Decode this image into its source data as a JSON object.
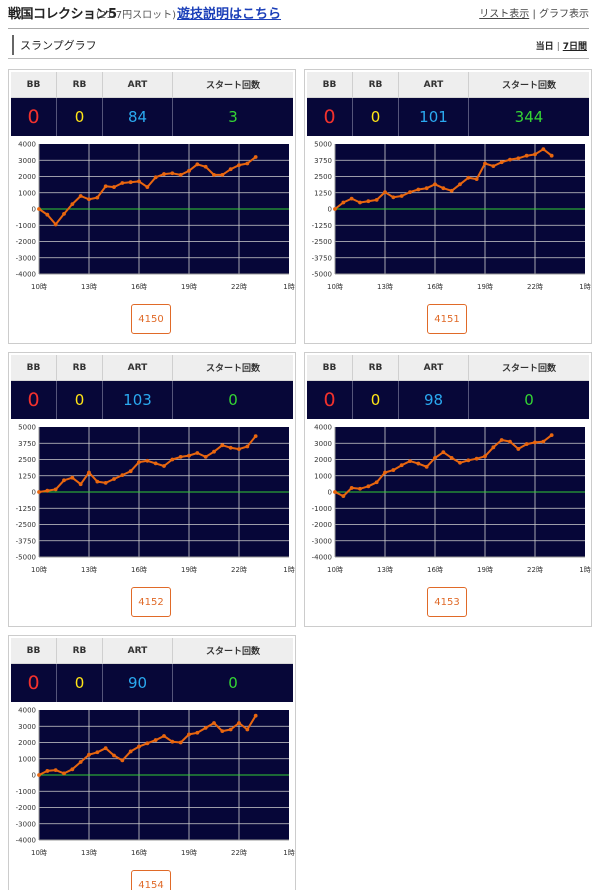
{
  "header": {
    "title": "戦国コレクション5",
    "subtitle": "(21.7円スロット)",
    "help_link": "遊技説明はこちら",
    "view_list": "リスト表示",
    "view_sep": "|",
    "view_graph": "グラフ表示"
  },
  "section": {
    "title": "スランプグラフ",
    "range_today": "当日",
    "range_sep": "|",
    "range_week": "7日間"
  },
  "columns": {
    "bb": "BB",
    "rb": "RB",
    "art": "ART",
    "start": "スタート回数"
  },
  "colors": {
    "line": "#e8660f",
    "zero_line": "#33cc33",
    "plot_bg": "#060638",
    "grid": "#cfcfcf"
  },
  "chart_data": [
    {
      "type": "line",
      "machine": "4150",
      "stats": {
        "bb": "0",
        "rb": "0",
        "art": "84",
        "start": "3"
      },
      "x_ticks": [
        "10時",
        "13時",
        "16時",
        "19時",
        "22時",
        "1時"
      ],
      "y_ticks": [
        "4000",
        "3000",
        "2000",
        "1000",
        "0",
        "-1000",
        "-2000",
        "-3000",
        "-4000"
      ],
      "xlim": [
        10,
        25
      ],
      "ylim": [
        -4000,
        4000
      ],
      "x": [
        10,
        10.5,
        11,
        11.5,
        12,
        12.5,
        13,
        13.5,
        14,
        14.5,
        15,
        15.5,
        16,
        16.5,
        17,
        17.5,
        18,
        18.5,
        19,
        19.5,
        20,
        20.5,
        21,
        21.5,
        22,
        22.5,
        23
      ],
      "y": [
        0,
        -350,
        -950,
        -300,
        300,
        800,
        600,
        700,
        1400,
        1350,
        1600,
        1650,
        1700,
        1350,
        1950,
        2150,
        2200,
        2100,
        2350,
        2750,
        2600,
        2100,
        2100,
        2450,
        2700,
        2800,
        3200
      ]
    },
    {
      "type": "line",
      "machine": "4151",
      "stats": {
        "bb": "0",
        "rb": "0",
        "art": "101",
        "start": "344"
      },
      "x_ticks": [
        "10時",
        "13時",
        "16時",
        "19時",
        "22時",
        "1時"
      ],
      "y_ticks": [
        "5000",
        "3750",
        "2500",
        "1250",
        "0",
        "-1250",
        "-2500",
        "-3750",
        "-5000"
      ],
      "xlim": [
        10,
        25
      ],
      "ylim": [
        -5000,
        5000
      ],
      "x": [
        10,
        10.5,
        11,
        11.5,
        12,
        12.5,
        13,
        13.5,
        14,
        14.5,
        15,
        15.5,
        16,
        16.5,
        17,
        17.5,
        18,
        18.5,
        19,
        19.5,
        20,
        20.5,
        21,
        21.5,
        22,
        22.5,
        23
      ],
      "y": [
        0,
        500,
        800,
        500,
        600,
        700,
        1300,
        900,
        1000,
        1300,
        1500,
        1600,
        1900,
        1600,
        1400,
        1900,
        2400,
        2300,
        3500,
        3300,
        3600,
        3800,
        3900,
        4100,
        4200,
        4600,
        4100
      ]
    },
    {
      "type": "line",
      "machine": "4152",
      "stats": {
        "bb": "0",
        "rb": "0",
        "art": "103",
        "start": "0"
      },
      "x_ticks": [
        "10時",
        "13時",
        "16時",
        "19時",
        "22時",
        "1時"
      ],
      "y_ticks": [
        "5000",
        "3750",
        "2500",
        "1250",
        "0",
        "-1250",
        "-2500",
        "-3750",
        "-5000"
      ],
      "xlim": [
        10,
        25
      ],
      "ylim": [
        -5000,
        5000
      ],
      "x": [
        10,
        10.5,
        11,
        11.5,
        12,
        12.5,
        13,
        13.5,
        14,
        14.5,
        15,
        15.5,
        16,
        16.5,
        17,
        17.5,
        18,
        18.5,
        19,
        19.5,
        20,
        20.5,
        21,
        21.5,
        22,
        22.5,
        23
      ],
      "y": [
        0,
        100,
        200,
        900,
        1100,
        600,
        1500,
        800,
        700,
        1000,
        1300,
        1600,
        2300,
        2400,
        2200,
        2000,
        2500,
        2700,
        2800,
        3000,
        2700,
        3100,
        3600,
        3400,
        3300,
        3500,
        4300
      ]
    },
    {
      "type": "line",
      "machine": "4153",
      "stats": {
        "bb": "0",
        "rb": "0",
        "art": "98",
        "start": "0"
      },
      "x_ticks": [
        "10時",
        "13時",
        "16時",
        "19時",
        "22時",
        "1時"
      ],
      "y_ticks": [
        "4000",
        "3000",
        "2000",
        "1000",
        "0",
        "-1000",
        "-2000",
        "-3000",
        "-4000"
      ],
      "xlim": [
        10,
        25
      ],
      "ylim": [
        -4000,
        4000
      ],
      "x": [
        10,
        10.5,
        11,
        11.5,
        12,
        12.5,
        13,
        13.5,
        14,
        14.5,
        15,
        15.5,
        16,
        16.5,
        17,
        17.5,
        18,
        18.5,
        19,
        19.5,
        20,
        20.5,
        21,
        21.5,
        22,
        22.5,
        23
      ],
      "y": [
        0,
        -250,
        250,
        200,
        350,
        600,
        1200,
        1350,
        1650,
        1900,
        1750,
        1550,
        2100,
        2450,
        2100,
        1800,
        1950,
        2050,
        2200,
        2750,
        3200,
        3100,
        2650,
        2950,
        3050,
        3100,
        3500
      ]
    },
    {
      "type": "line",
      "machine": "4154",
      "stats": {
        "bb": "0",
        "rb": "0",
        "art": "90",
        "start": "0"
      },
      "x_ticks": [
        "10時",
        "13時",
        "16時",
        "19時",
        "22時",
        "1時"
      ],
      "y_ticks": [
        "4000",
        "3000",
        "2000",
        "1000",
        "0",
        "-1000",
        "-2000",
        "-3000",
        "-4000"
      ],
      "xlim": [
        10,
        25
      ],
      "ylim": [
        -4000,
        4000
      ],
      "x": [
        10,
        10.5,
        11,
        11.5,
        12,
        12.5,
        13,
        13.5,
        14,
        14.5,
        15,
        15.5,
        16,
        16.5,
        17,
        17.5,
        18,
        18.5,
        19,
        19.5,
        20,
        20.5,
        21,
        21.5,
        22,
        22.5,
        23
      ],
      "y": [
        0,
        250,
        300,
        100,
        350,
        800,
        1250,
        1400,
        1650,
        1200,
        900,
        1450,
        1750,
        1950,
        2150,
        2400,
        2050,
        2000,
        2500,
        2600,
        2900,
        3200,
        2700,
        2800,
        3200,
        2800,
        3650
      ]
    }
  ]
}
